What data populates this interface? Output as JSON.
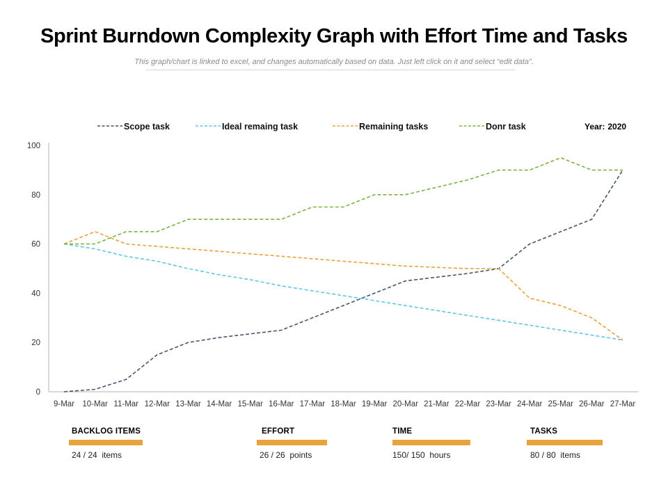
{
  "title": "Sprint Burndown Complexity Graph with Effort Time and Tasks",
  "subtitle": "This graph/chart is linked to excel, and changes automatically based on data. Just left click on it and select “edit data”.",
  "year_label": "Year:",
  "year_value": "2020",
  "colors": {
    "accent": "#E8A33D",
    "scope": "#44546A",
    "ideal": "#5BC8E8",
    "remaining": "#E8A33D",
    "done": "#7CB342"
  },
  "chart_data": {
    "type": "line",
    "categories": [
      "9-Mar",
      "10-Mar",
      "11-Mar",
      "12-Mar",
      "13-Mar",
      "14-Mar",
      "15-Mar",
      "16-Mar",
      "17-Mar",
      "18-Mar",
      "19-Mar",
      "20-Mar",
      "21-Mar",
      "22-Mar",
      "23-Mar",
      "24-Mar",
      "25-Mar",
      "26-Mar",
      "27-Mar"
    ],
    "ylim": [
      0,
      100
    ],
    "yticks": [
      0,
      20,
      40,
      60,
      80,
      100
    ],
    "line_style": "dashed",
    "series": [
      {
        "name": "Scope task",
        "color": "#44546A",
        "values": [
          0,
          1,
          5,
          15,
          20,
          22,
          23.5,
          25,
          30,
          35,
          40,
          45,
          46.5,
          48,
          50,
          60,
          65,
          70,
          90
        ]
      },
      {
        "name": "Ideal remaing task",
        "color": "#5BC8E8",
        "values": [
          60,
          58,
          55,
          53,
          50,
          47.5,
          45.5,
          43,
          41,
          39,
          37,
          35,
          33,
          31,
          29,
          27,
          25,
          23,
          21
        ]
      },
      {
        "name": "Remaining tasks",
        "color": "#E8A33D",
        "values": [
          60,
          65,
          60,
          59,
          58,
          57,
          56,
          55,
          54,
          53,
          52,
          51,
          50.5,
          50,
          50,
          38,
          35,
          30,
          21
        ]
      },
      {
        "name": "Donr task",
        "color": "#7CB342",
        "values": [
          60,
          60,
          65,
          65,
          70,
          70,
          70,
          70,
          75,
          75,
          80,
          80,
          83,
          86,
          90,
          90,
          95,
          90,
          90
        ]
      }
    ]
  },
  "stats": [
    {
      "label": "BACKLOG ITEMS",
      "value": "24 / 24  items"
    },
    {
      "label": "EFFORT",
      "value": "26 / 26  points"
    },
    {
      "label": "TIME",
      "value": "150/ 150  hours"
    },
    {
      "label": "TASKS",
      "value": "80 / 80  items"
    }
  ]
}
